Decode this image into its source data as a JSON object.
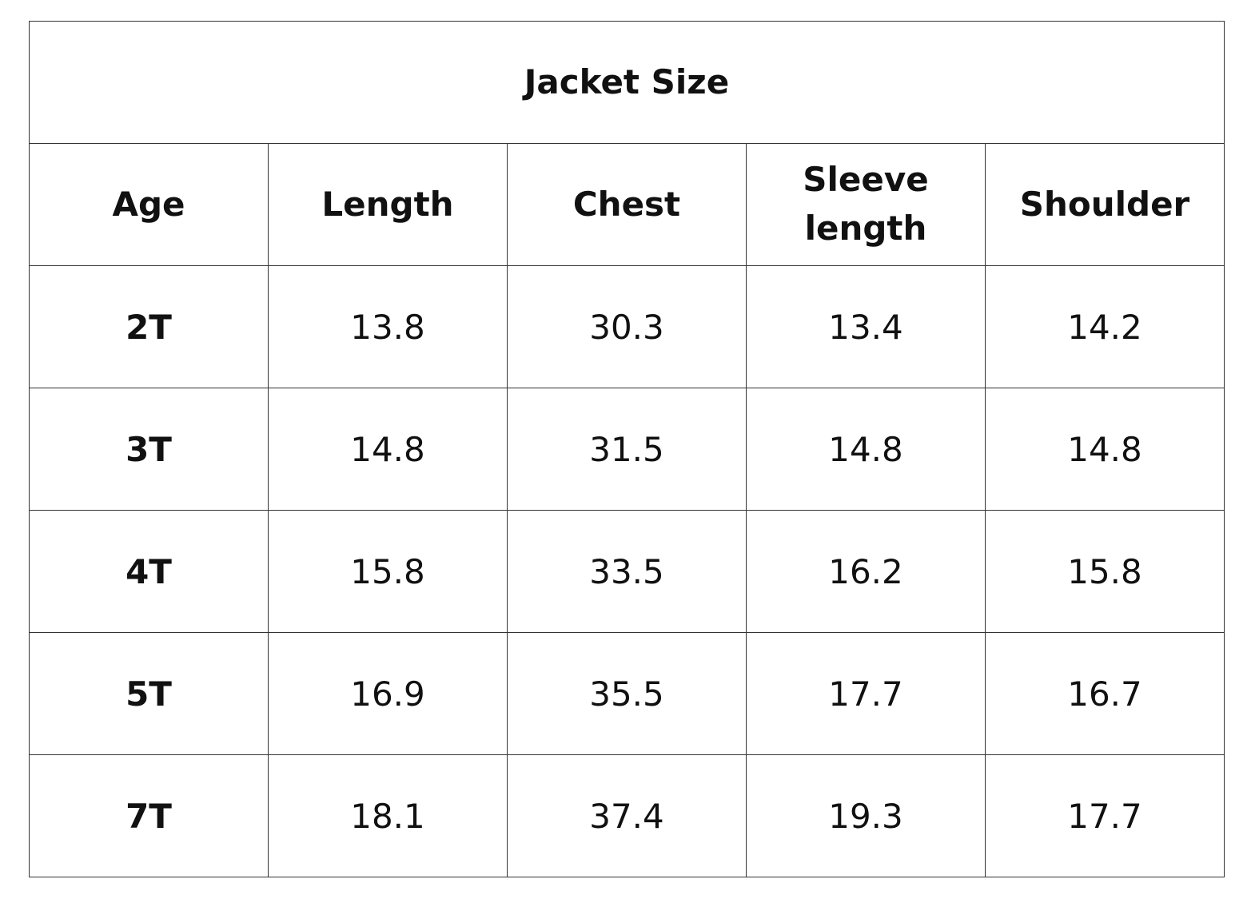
{
  "table": {
    "title": "Jacket Size",
    "headers": [
      "Age",
      "Length",
      "Chest",
      "Sleeve length",
      "Shoulder"
    ],
    "rows": [
      [
        "2T",
        "13.8",
        "30.3",
        "13.4",
        "14.2"
      ],
      [
        "3T",
        "14.8",
        "31.5",
        "14.8",
        "14.8"
      ],
      [
        "4T",
        "15.8",
        "33.5",
        "16.2",
        "15.8"
      ],
      [
        "5T",
        "16.9",
        "35.5",
        "17.7",
        "16.7"
      ],
      [
        "7T",
        "18.1",
        "37.4",
        "19.3",
        "17.7"
      ]
    ]
  }
}
